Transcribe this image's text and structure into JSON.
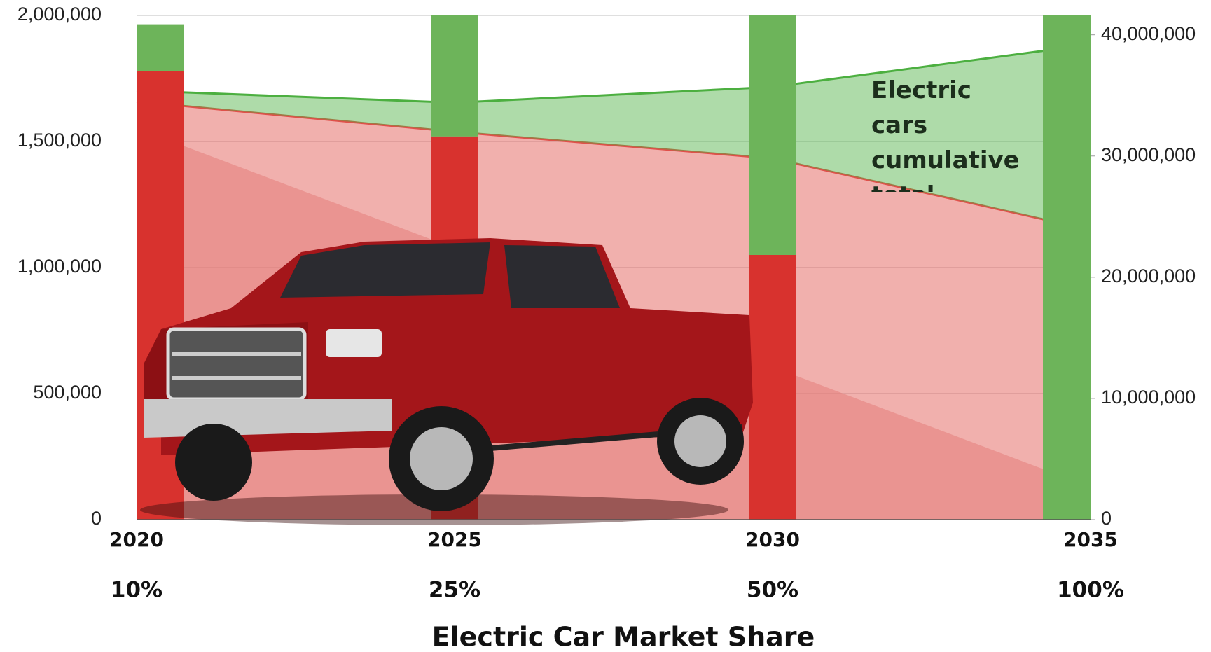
{
  "chart_data": {
    "type": "bar",
    "categories": [
      "2020",
      "2025",
      "2030",
      "2035"
    ],
    "market_share": [
      "10%",
      "25%",
      "50%",
      "100%"
    ],
    "x_label": "Electric Car Market Share",
    "annotation": "Electric cars cumulative total",
    "ylim": [
      0,
      2000000
    ],
    "yticks": [
      0,
      {
        "value": 500000,
        "label": "500,000"
      },
      {
        "value": 1000000,
        "label": "1,000,000"
      },
      {
        "value": 1500000,
        "label": "1,500,000"
      },
      {
        "value": 2000000,
        "label": "2,000,000"
      }
    ],
    "y2lim": [
      0,
      41600000
    ],
    "y2ticks": [
      0,
      {
        "value": 10000000,
        "label": "10,000,000"
      },
      {
        "value": 20000000,
        "label": "20,000,000"
      },
      {
        "value": 30000000,
        "label": "30,000,000"
      },
      {
        "value": 40000000,
        "label": "40,000,000"
      }
    ],
    "grid": true,
    "series": [
      {
        "type": "area",
        "axis": "y2",
        "fill": "below",
        "color": "#e9a3a3",
        "values": [
          32300000,
          22400000,
          12600000,
          2700000
        ]
      },
      {
        "type": "line",
        "axis": "y2",
        "fill": "below",
        "color": "#e0504a",
        "values": [
          34500000,
          32000000,
          29800000,
          23900000
        ]
      },
      {
        "type": "line",
        "axis": "y2",
        "fill": "between",
        "color": "#4caf40",
        "values": [
          35400000,
          34400000,
          35700000,
          39200000
        ]
      },
      {
        "type": "bar",
        "color": "#d8322e",
        "values": [
          1780000,
          1520000,
          1050000,
          0
        ]
      },
      {
        "type": "bar",
        "color": "#6db45a",
        "values": [
          185000,
          480000,
          950000,
          2000000
        ]
      }
    ]
  }
}
